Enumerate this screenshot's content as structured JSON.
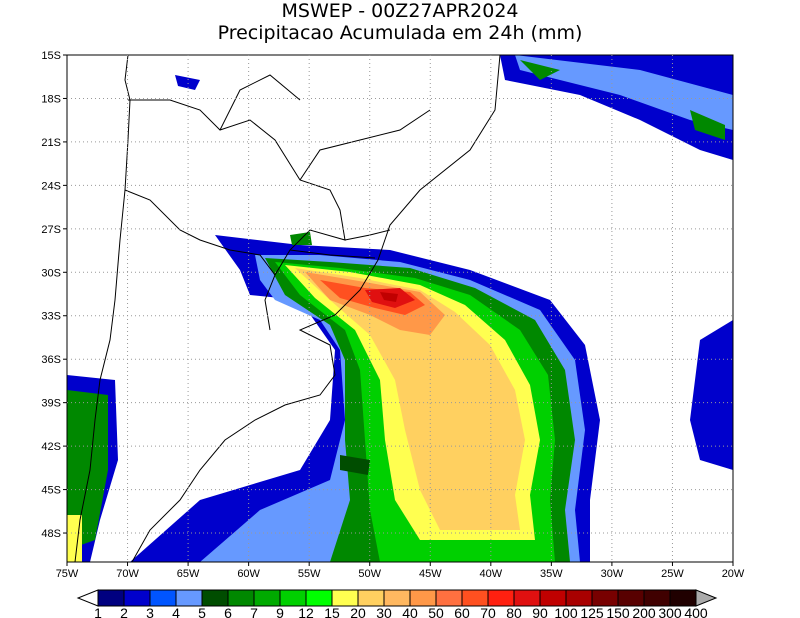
{
  "title": "MSWEP - 00Z27APR2024",
  "subtitle": "Precipitacao Acumulada em 24h (mm)",
  "map": {
    "lon_range": [
      -75,
      -20
    ],
    "lat_range": [
      -50,
      -15
    ],
    "grid": true,
    "lat_labels": [
      "15S",
      "18S",
      "21S",
      "24S",
      "27S",
      "30S",
      "33S",
      "36S",
      "39S",
      "42S",
      "45S",
      "48S"
    ],
    "lon_labels": [
      "75W",
      "70W",
      "65W",
      "60W",
      "55W",
      "50W",
      "45W",
      "40W",
      "35W",
      "30W",
      "25W",
      "20W"
    ]
  },
  "colorbar": {
    "labels": [
      "1",
      "2",
      "3",
      "4",
      "5",
      "6",
      "7",
      "9",
      "12",
      "15",
      "20",
      "30",
      "40",
      "50",
      "60",
      "70",
      "80",
      "90",
      "100",
      "125",
      "150",
      "200",
      "300",
      "400"
    ],
    "colors": [
      "#000080",
      "#0000cc",
      "#0055ff",
      "#6699ff",
      "#004d00",
      "#008800",
      "#00aa00",
      "#00d000",
      "#00ff00",
      "#ffff50",
      "#ffd060",
      "#ffb860",
      "#ff9848",
      "#ff7040",
      "#ff5020",
      "#ff2010",
      "#e01010",
      "#c00000",
      "#a80000",
      "#780000",
      "#580000",
      "#400000",
      "#200000"
    ],
    "under_color": "#ffffff",
    "over_color": "#aaaaaa"
  }
}
